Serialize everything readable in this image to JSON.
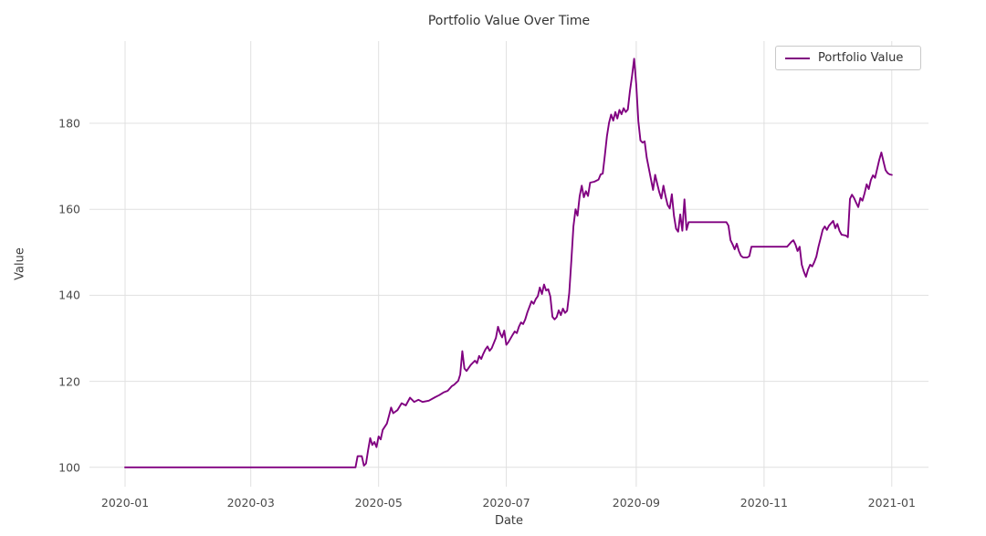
{
  "chart_data": {
    "type": "line",
    "title": "Portfolio Value Over Time",
    "xlabel": "Date",
    "ylabel": "Value",
    "grid": true,
    "legend_position": "upper right",
    "legend": {
      "entries": [
        {
          "label": "Portfolio Value",
          "color": "#800080"
        }
      ]
    },
    "colors": {
      "line": "#800080",
      "grid": "#e0e0e0",
      "background": "#ffffff",
      "title_text": "#333333",
      "tick_text": "#4a4a4a"
    },
    "ylim": [
      95.5,
      199.1
    ],
    "xlim_days_from_2020_01_01": [
      -17,
      383.5
    ],
    "yticks": [
      100,
      120,
      140,
      160,
      180
    ],
    "xticks": [
      {
        "date": "2020-01-01",
        "label": "2020-01"
      },
      {
        "date": "2020-03-01",
        "label": "2020-03"
      },
      {
        "date": "2020-05-01",
        "label": "2020-05"
      },
      {
        "date": "2020-07-01",
        "label": "2020-07"
      },
      {
        "date": "2020-09-01",
        "label": "2020-09"
      },
      {
        "date": "2020-11-01",
        "label": "2020-11"
      },
      {
        "date": "2021-01-01",
        "label": "2021-01"
      }
    ],
    "series": [
      {
        "name": "Portfolio Value",
        "color": "#800080",
        "points": [
          [
            "2020-01-01",
            100
          ],
          [
            "2020-02-01",
            100
          ],
          [
            "2020-03-01",
            100
          ],
          [
            "2020-04-01",
            100
          ],
          [
            "2020-04-20",
            100
          ],
          [
            "2020-04-21",
            102.6
          ],
          [
            "2020-04-23",
            102.6
          ],
          [
            "2020-04-24",
            100.4
          ],
          [
            "2020-04-25",
            100.9
          ],
          [
            "2020-04-26",
            104.0
          ],
          [
            "2020-04-27",
            106.8
          ],
          [
            "2020-04-28",
            105.2
          ],
          [
            "2020-04-29",
            105.9
          ],
          [
            "2020-04-30",
            104.7
          ],
          [
            "2020-05-01",
            107.2
          ],
          [
            "2020-05-02",
            106.5
          ],
          [
            "2020-05-03",
            108.7
          ],
          [
            "2020-05-05",
            110.2
          ],
          [
            "2020-05-06",
            112.0
          ],
          [
            "2020-05-07",
            113.9
          ],
          [
            "2020-05-08",
            112.6
          ],
          [
            "2020-05-10",
            113.3
          ],
          [
            "2020-05-12",
            114.9
          ],
          [
            "2020-05-14",
            114.4
          ],
          [
            "2020-05-16",
            116.2
          ],
          [
            "2020-05-18",
            115.2
          ],
          [
            "2020-05-20",
            115.7
          ],
          [
            "2020-05-22",
            115.2
          ],
          [
            "2020-05-25",
            115.5
          ],
          [
            "2020-05-28",
            116.3
          ],
          [
            "2020-05-30",
            116.8
          ],
          [
            "2020-06-01",
            117.4
          ],
          [
            "2020-06-03",
            117.8
          ],
          [
            "2020-06-05",
            118.9
          ],
          [
            "2020-06-06",
            119.2
          ],
          [
            "2020-06-08",
            120.1
          ],
          [
            "2020-06-09",
            121.6
          ],
          [
            "2020-06-10",
            127.0
          ],
          [
            "2020-06-11",
            123.0
          ],
          [
            "2020-06-12",
            122.4
          ],
          [
            "2020-06-14",
            123.8
          ],
          [
            "2020-06-16",
            124.8
          ],
          [
            "2020-06-17",
            124.2
          ],
          [
            "2020-06-18",
            125.9
          ],
          [
            "2020-06-19",
            125.2
          ],
          [
            "2020-06-20",
            126.4
          ],
          [
            "2020-06-21",
            127.4
          ],
          [
            "2020-06-22",
            128.1
          ],
          [
            "2020-06-23",
            127.1
          ],
          [
            "2020-06-24",
            127.7
          ],
          [
            "2020-06-26",
            130.1
          ],
          [
            "2020-06-27",
            132.7
          ],
          [
            "2020-06-28",
            131.2
          ],
          [
            "2020-06-29",
            130.2
          ],
          [
            "2020-06-30",
            131.8
          ],
          [
            "2020-07-01",
            128.5
          ],
          [
            "2020-07-02",
            129.1
          ],
          [
            "2020-07-04",
            130.8
          ],
          [
            "2020-07-05",
            131.6
          ],
          [
            "2020-07-06",
            131.2
          ],
          [
            "2020-07-07",
            132.7
          ],
          [
            "2020-07-08",
            133.7
          ],
          [
            "2020-07-09",
            133.3
          ],
          [
            "2020-07-10",
            134.4
          ],
          [
            "2020-07-11",
            136.0
          ],
          [
            "2020-07-13",
            138.6
          ],
          [
            "2020-07-14",
            138.0
          ],
          [
            "2020-07-15",
            139.1
          ],
          [
            "2020-07-16",
            139.8
          ],
          [
            "2020-07-17",
            141.8
          ],
          [
            "2020-07-18",
            140.3
          ],
          [
            "2020-07-19",
            142.5
          ],
          [
            "2020-07-20",
            141.1
          ],
          [
            "2020-07-21",
            141.4
          ],
          [
            "2020-07-22",
            139.7
          ],
          [
            "2020-07-23",
            135.0
          ],
          [
            "2020-07-24",
            134.4
          ],
          [
            "2020-07-25",
            134.9
          ],
          [
            "2020-07-26",
            136.5
          ],
          [
            "2020-07-27",
            135.4
          ],
          [
            "2020-07-28",
            136.9
          ],
          [
            "2020-07-29",
            135.9
          ],
          [
            "2020-07-30",
            136.4
          ],
          [
            "2020-07-31",
            140.5
          ],
          [
            "2020-08-01",
            148.0
          ],
          [
            "2020-08-02",
            156.0
          ],
          [
            "2020-08-03",
            160.0
          ],
          [
            "2020-08-04",
            158.5
          ],
          [
            "2020-08-05",
            163.0
          ],
          [
            "2020-08-06",
            165.5
          ],
          [
            "2020-08-07",
            162.8
          ],
          [
            "2020-08-08",
            164.2
          ],
          [
            "2020-08-09",
            163.1
          ],
          [
            "2020-08-10",
            166.2
          ],
          [
            "2020-08-12",
            166.4
          ],
          [
            "2020-08-14",
            166.9
          ],
          [
            "2020-08-15",
            168.1
          ],
          [
            "2020-08-16",
            168.3
          ],
          [
            "2020-08-17",
            172.5
          ],
          [
            "2020-08-18",
            177.0
          ],
          [
            "2020-08-19",
            180.1
          ],
          [
            "2020-08-20",
            182.0
          ],
          [
            "2020-08-21",
            180.6
          ],
          [
            "2020-08-22",
            182.6
          ],
          [
            "2020-08-23",
            181.1
          ],
          [
            "2020-08-24",
            183.1
          ],
          [
            "2020-08-25",
            182.1
          ],
          [
            "2020-08-26",
            183.5
          ],
          [
            "2020-08-27",
            182.6
          ],
          [
            "2020-08-28",
            183.2
          ],
          [
            "2020-08-29",
            187.5
          ],
          [
            "2020-08-30",
            191.0
          ],
          [
            "2020-08-31",
            195.0
          ],
          [
            "2020-09-01",
            189.0
          ],
          [
            "2020-09-02",
            180.5
          ],
          [
            "2020-09-03",
            176.0
          ],
          [
            "2020-09-04",
            175.5
          ],
          [
            "2020-09-05",
            175.8
          ],
          [
            "2020-09-06",
            172.0
          ],
          [
            "2020-09-07",
            169.5
          ],
          [
            "2020-09-08",
            167.0
          ],
          [
            "2020-09-09",
            164.5
          ],
          [
            "2020-09-10",
            168.0
          ],
          [
            "2020-09-11",
            166.0
          ],
          [
            "2020-09-12",
            164.0
          ],
          [
            "2020-09-13",
            162.5
          ],
          [
            "2020-09-14",
            165.5
          ],
          [
            "2020-09-15",
            163.0
          ],
          [
            "2020-09-16",
            161.0
          ],
          [
            "2020-09-17",
            160.2
          ],
          [
            "2020-09-18",
            163.5
          ],
          [
            "2020-09-19",
            158.5
          ],
          [
            "2020-09-20",
            155.5
          ],
          [
            "2020-09-21",
            154.8
          ],
          [
            "2020-09-22",
            158.8
          ],
          [
            "2020-09-23",
            155.0
          ],
          [
            "2020-09-24",
            162.3
          ],
          [
            "2020-09-25",
            155.2
          ],
          [
            "2020-09-26",
            157.0
          ],
          [
            "2020-10-01",
            157.0
          ],
          [
            "2020-10-06",
            157.0
          ],
          [
            "2020-10-10",
            157.0
          ],
          [
            "2020-10-14",
            157.0
          ],
          [
            "2020-10-15",
            156.2
          ],
          [
            "2020-10-16",
            152.8
          ],
          [
            "2020-10-17",
            151.8
          ],
          [
            "2020-10-18",
            150.7
          ],
          [
            "2020-10-19",
            152.0
          ],
          [
            "2020-10-20",
            150.3
          ],
          [
            "2020-10-21",
            149.2
          ],
          [
            "2020-10-22",
            148.8
          ],
          [
            "2020-10-24",
            148.8
          ],
          [
            "2020-10-25",
            149.1
          ],
          [
            "2020-10-26",
            151.3
          ],
          [
            "2020-11-01",
            151.3
          ],
          [
            "2020-11-06",
            151.3
          ],
          [
            "2020-11-12",
            151.3
          ],
          [
            "2020-11-14",
            152.4
          ],
          [
            "2020-11-15",
            152.8
          ],
          [
            "2020-11-16",
            151.8
          ],
          [
            "2020-11-17",
            150.3
          ],
          [
            "2020-11-18",
            151.3
          ],
          [
            "2020-11-19",
            147.1
          ],
          [
            "2020-11-20",
            145.5
          ],
          [
            "2020-11-21",
            144.3
          ],
          [
            "2020-11-22",
            146.0
          ],
          [
            "2020-11-23",
            147.1
          ],
          [
            "2020-11-24",
            146.7
          ],
          [
            "2020-11-25",
            147.7
          ],
          [
            "2020-11-26",
            149.0
          ],
          [
            "2020-11-27",
            151.3
          ],
          [
            "2020-11-28",
            153.2
          ],
          [
            "2020-11-29",
            155.2
          ],
          [
            "2020-11-30",
            156.0
          ],
          [
            "2020-12-01",
            155.2
          ],
          [
            "2020-12-02",
            156.2
          ],
          [
            "2020-12-04",
            157.3
          ],
          [
            "2020-12-05",
            155.6
          ],
          [
            "2020-12-06",
            156.6
          ],
          [
            "2020-12-07",
            155.0
          ],
          [
            "2020-12-08",
            154.1
          ],
          [
            "2020-12-10",
            153.9
          ],
          [
            "2020-12-11",
            153.5
          ],
          [
            "2020-12-12",
            162.4
          ],
          [
            "2020-12-13",
            163.4
          ],
          [
            "2020-12-14",
            162.6
          ],
          [
            "2020-12-15",
            161.5
          ],
          [
            "2020-12-16",
            160.5
          ],
          [
            "2020-12-17",
            162.6
          ],
          [
            "2020-12-18",
            162.0
          ],
          [
            "2020-12-19",
            163.7
          ],
          [
            "2020-12-20",
            165.8
          ],
          [
            "2020-12-21",
            164.7
          ],
          [
            "2020-12-22",
            166.8
          ],
          [
            "2020-12-23",
            167.9
          ],
          [
            "2020-12-24",
            167.3
          ],
          [
            "2020-12-26",
            171.5
          ],
          [
            "2020-12-27",
            173.2
          ],
          [
            "2020-12-28",
            171.1
          ],
          [
            "2020-12-29",
            169.1
          ],
          [
            "2020-12-30",
            168.4
          ],
          [
            "2020-12-31",
            168.1
          ],
          [
            "2021-01-01",
            168.0
          ]
        ]
      }
    ]
  }
}
